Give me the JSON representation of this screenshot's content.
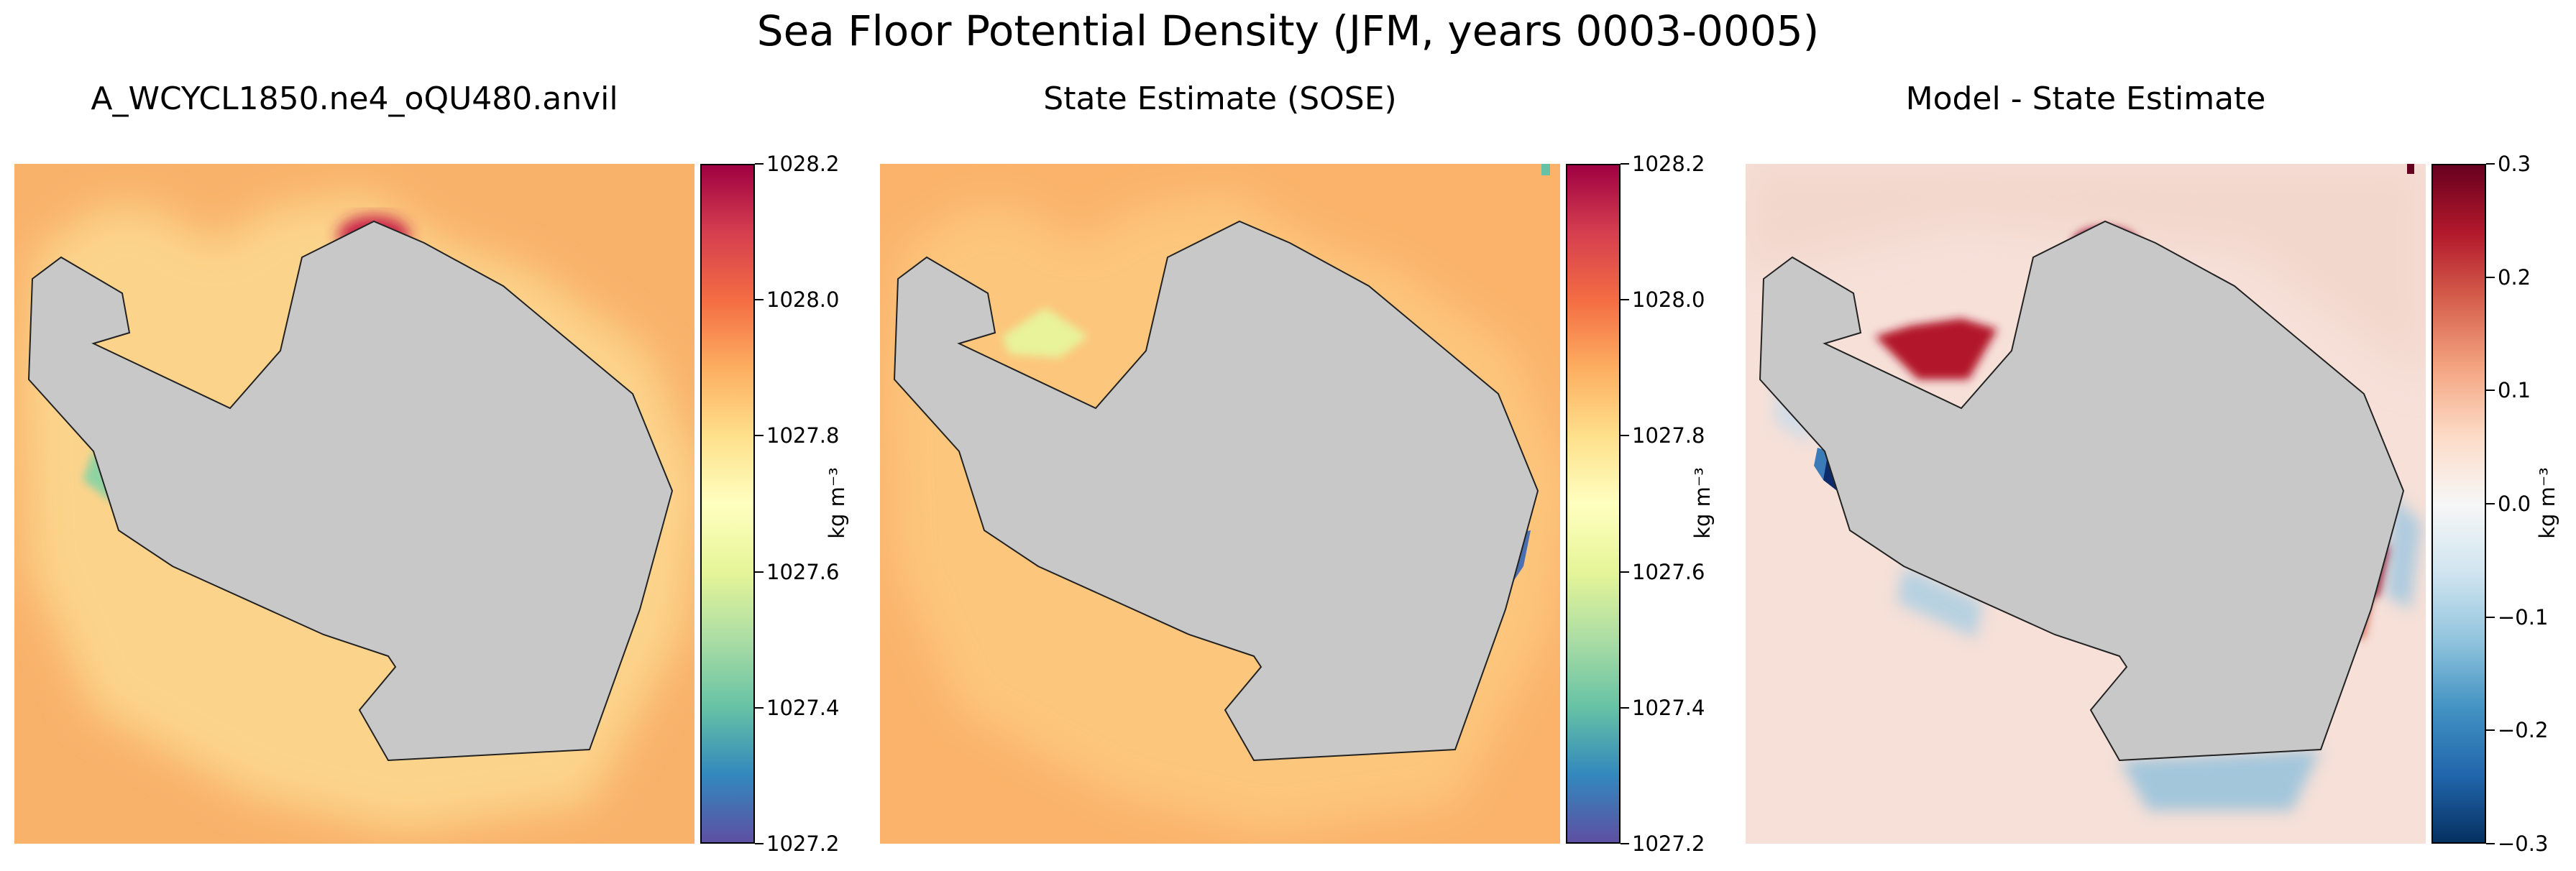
{
  "title": "Sea Floor Potential Density (JFM, years 0003-0005)",
  "chart_data": [
    {
      "type": "heatmap",
      "title": "A_WCYCL1850.ne4_oQU480.anvil",
      "colormap": "Spectral_r",
      "colorbar": {
        "label": "kg m⁻³",
        "range": [
          1027.2,
          1028.2
        ],
        "ticks": [
          "1027.2",
          "1027.4",
          "1027.6",
          "1027.8",
          "1028.0",
          "1028.2"
        ]
      },
      "land_color": "#c8c8c8",
      "background_value": 1028.05
    },
    {
      "type": "heatmap",
      "title": "State Estimate (SOSE)",
      "colormap": "Spectral_r",
      "colorbar": {
        "label": "kg m⁻³",
        "range": [
          1027.2,
          1028.2
        ],
        "ticks": [
          "1027.2",
          "1027.4",
          "1027.6",
          "1027.8",
          "1028.0",
          "1028.2"
        ]
      },
      "land_color": "#c8c8c8",
      "background_value": 1028.0
    },
    {
      "type": "heatmap",
      "title": "Model - State Estimate",
      "colormap": "RdBu_r",
      "colorbar": {
        "label": "kg m⁻³",
        "range": [
          -0.3,
          0.3
        ],
        "ticks": [
          "−0.3",
          "−0.2",
          "−0.1",
          "0.0",
          "0.1",
          "0.2",
          "0.3"
        ]
      },
      "land_color": "#c8c8c8",
      "background_value": 0.04
    }
  ]
}
